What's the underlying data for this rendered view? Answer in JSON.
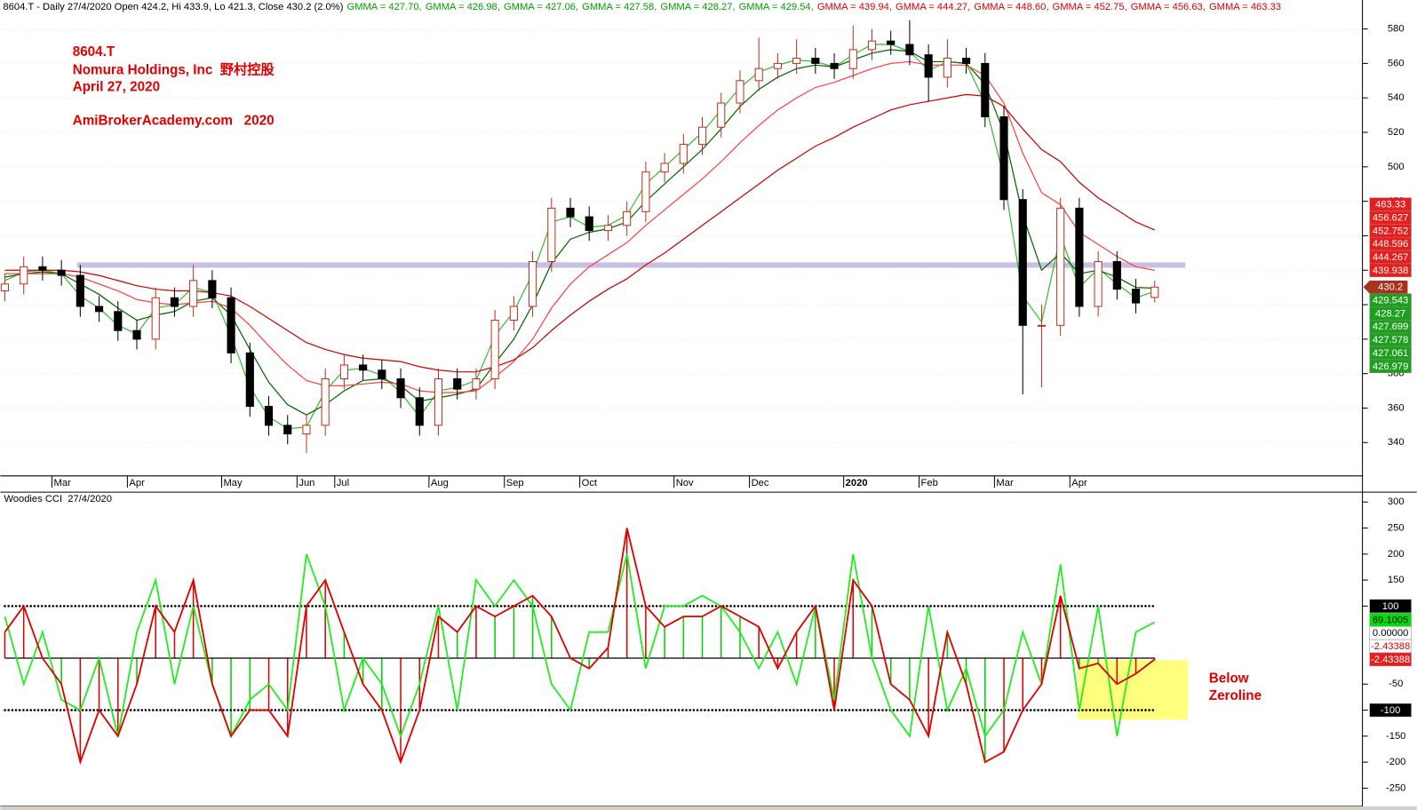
{
  "chart_data": [
    {
      "type": "candlestick",
      "title": "8604.T - Daily 27/4/2020 Open 424.2, Hi 433.9, Lo 421.3, Close 430.2 (2.0%)",
      "indicator_labels": [
        {
          "text": "GMMA = 427.70,",
          "color": "#00a000"
        },
        {
          "text": "GMMA = 426.98,",
          "color": "#00a000"
        },
        {
          "text": "GMMA = 427.06,",
          "color": "#00a000"
        },
        {
          "text": "GMMA = 427.58,",
          "color": "#00a000"
        },
        {
          "text": "GMMA = 428.27,",
          "color": "#00a000"
        },
        {
          "text": "GMMA = 429.54,",
          "color": "#00a000"
        },
        {
          "text": "GMMA = 439.94,",
          "color": "#e00000"
        },
        {
          "text": "GMMA = 444.27,",
          "color": "#e00000"
        },
        {
          "text": "GMMA = 448.60,",
          "color": "#e00000"
        },
        {
          "text": "GMMA = 452.75,",
          "color": "#e00000"
        },
        {
          "text": "GMMA = 456.63,",
          "color": "#e00000"
        },
        {
          "text": "GMMA = 463.33",
          "color": "#e00000"
        }
      ],
      "annotations": [
        "8604.T",
        "Nomura Holdings, Inc  野村控股",
        "April 27, 2020",
        "AmiBrokerAcademy.com   2020"
      ],
      "annotation_color": "#e00000",
      "categories": [
        null,
        null,
        null,
        "Mar",
        null,
        null,
        null,
        "Apr",
        null,
        null,
        null,
        null,
        "May",
        null,
        null,
        null,
        "Jun",
        null,
        "Jul",
        null,
        null,
        null,
        null,
        "Aug",
        null,
        null,
        null,
        "Sep",
        null,
        null,
        null,
        "Oct",
        null,
        null,
        null,
        null,
        "Nov",
        null,
        null,
        null,
        "Dec",
        null,
        null,
        null,
        null,
        "2020",
        null,
        null,
        null,
        "Feb",
        null,
        null,
        null,
        "Mar",
        null,
        null,
        null,
        "Apr",
        null,
        null,
        null,
        null
      ],
      "open": [
        428,
        432,
        442,
        440,
        437,
        419,
        416,
        405,
        400,
        424,
        419,
        434,
        424,
        392,
        361,
        350,
        345,
        350,
        377,
        385,
        382,
        377,
        366,
        350,
        377,
        371,
        377,
        411,
        419,
        445,
        476,
        471,
        463,
        466,
        474,
        497,
        502,
        513,
        523,
        537,
        550,
        557,
        560,
        563,
        560,
        557,
        568,
        573,
        571,
        565,
        552,
        563,
        560,
        529,
        481,
        408,
        408,
        476,
        419,
        445,
        429,
        424.2
      ],
      "high": [
        438,
        448,
        448,
        446,
        443,
        425,
        422,
        411,
        430,
        430,
        443,
        440,
        430,
        398,
        367,
        356,
        356,
        383,
        391,
        391,
        388,
        383,
        372,
        383,
        383,
        383,
        417,
        425,
        451,
        482,
        482,
        477,
        472,
        480,
        503,
        508,
        519,
        529,
        543,
        556,
        575,
        566,
        574,
        569,
        566,
        582,
        580,
        579,
        585,
        571,
        574,
        569,
        566,
        535,
        487,
        420,
        482,
        482,
        451,
        451,
        435,
        433.9
      ],
      "low": [
        422,
        426,
        434,
        431,
        413,
        410,
        399,
        394,
        394,
        413,
        413,
        418,
        386,
        355,
        344,
        339,
        334,
        344,
        371,
        376,
        371,
        360,
        344,
        344,
        365,
        365,
        371,
        405,
        413,
        439,
        465,
        457,
        457,
        460,
        468,
        491,
        496,
        507,
        517,
        531,
        544,
        551,
        554,
        554,
        551,
        551,
        562,
        565,
        559,
        538,
        546,
        554,
        523,
        475,
        368,
        372,
        402,
        413,
        413,
        423,
        415,
        421.3
      ],
      "close": [
        432,
        442,
        440,
        437,
        419,
        416,
        405,
        400,
        424,
        419,
        434,
        424,
        392,
        361,
        350,
        345,
        350,
        377,
        385,
        382,
        377,
        366,
        350,
        377,
        371,
        377,
        411,
        419,
        445,
        476,
        471,
        463,
        466,
        474,
        497,
        502,
        513,
        523,
        537,
        550,
        557,
        560,
        563,
        560,
        557,
        568,
        573,
        571,
        565,
        552,
        563,
        560,
        529,
        481,
        408,
        408,
        476,
        419,
        445,
        429,
        421,
        430.2
      ],
      "up_color": "#ffffff",
      "up_edge": "#c03020",
      "down_color": "#000000",
      "series": [
        {
          "color": "#33bb33",
          "values": [
            434,
            439,
            440,
            438,
            425,
            418,
            408,
            403,
            418,
            420,
            430,
            427,
            402,
            372,
            355,
            348,
            349,
            370,
            382,
            383,
            379,
            369,
            355,
            370,
            372,
            376,
            402,
            416,
            438,
            468,
            471,
            465,
            466,
            472,
            490,
            500,
            510,
            520,
            533,
            546,
            555,
            559,
            562,
            561,
            558,
            565,
            571,
            571,
            567,
            556,
            561,
            560,
            537,
            494,
            425,
            410,
            460,
            430,
            441,
            432,
            424,
            427.7
          ]
        },
        {
          "color": "#006600",
          "values": [
            436,
            438,
            439,
            438,
            432,
            426,
            418,
            411,
            414,
            416,
            422,
            424,
            414,
            394,
            375,
            362,
            356,
            362,
            370,
            376,
            377,
            373,
            364,
            366,
            368,
            371,
            386,
            400,
            420,
            444,
            458,
            462,
            464,
            468,
            480,
            490,
            500,
            510,
            522,
            535,
            545,
            552,
            557,
            559,
            558,
            562,
            566,
            568,
            567,
            561,
            561,
            560,
            548,
            520,
            472,
            440,
            450,
            438,
            440,
            436,
            430,
            429.54
          ]
        },
        {
          "color": "#ff4040",
          "values": [
            438,
            438,
            438,
            438,
            436,
            432,
            428,
            423,
            421,
            420,
            421,
            422,
            418,
            408,
            396,
            385,
            376,
            373,
            373,
            374,
            375,
            374,
            370,
            369,
            369,
            370,
            378,
            387,
            400,
            418,
            432,
            442,
            449,
            456,
            466,
            475,
            484,
            493,
            503,
            514,
            524,
            533,
            540,
            546,
            549,
            553,
            557,
            560,
            561,
            559,
            559,
            559,
            553,
            537,
            508,
            485,
            478,
            462,
            455,
            448,
            442,
            439.94
          ]
        },
        {
          "color": "#cc0000",
          "values": [
            440,
            440,
            440,
            440,
            439,
            437,
            434,
            431,
            429,
            428,
            428,
            427,
            425,
            419,
            412,
            405,
            398,
            394,
            391,
            389,
            388,
            387,
            384,
            382,
            381,
            381,
            384,
            388,
            395,
            405,
            414,
            422,
            429,
            435,
            443,
            450,
            458,
            466,
            474,
            482,
            490,
            498,
            505,
            512,
            517,
            523,
            528,
            533,
            536,
            538,
            540,
            542,
            541,
            535,
            522,
            510,
            503,
            491,
            482,
            475,
            468,
            463.33
          ]
        }
      ],
      "reference_lines": [
        {
          "value": 443,
          "color": "#c8c0e4"
        }
      ],
      "ylim": [
        321.7,
        596.8
      ],
      "yticks": [
        340,
        360,
        380,
        400,
        420,
        440,
        460,
        480,
        500,
        520,
        540,
        560,
        580
      ],
      "grid": true,
      "value_tags": [
        {
          "value": 463.33,
          "label": "463.33",
          "bg": "#e81e1e",
          "fg": "#ffffff"
        },
        {
          "value": 456.627,
          "label": "456.627",
          "bg": "#e81e1e",
          "fg": "#ffffff"
        },
        {
          "value": 452.752,
          "label": "452.752",
          "bg": "#e81e1e",
          "fg": "#ffffff"
        },
        {
          "value": 448.596,
          "label": "448.596",
          "bg": "#e81e1e",
          "fg": "#ffffff"
        },
        {
          "value": 444.267,
          "label": "444.267",
          "bg": "#e81e1e",
          "fg": "#ffffff"
        },
        {
          "value": 439.938,
          "label": "439.938",
          "bg": "#e81e1e",
          "fg": "#ffffff"
        },
        {
          "value": 430.2,
          "label": "430.2",
          "bg": "#a8321e",
          "fg": "#ffffff"
        },
        {
          "value": 429.543,
          "label": "429.543",
          "bg": "#1ea01e",
          "fg": "#ffffff"
        },
        {
          "value": 428.27,
          "label": "428.27",
          "bg": "#1ea01e",
          "fg": "#ffffff"
        },
        {
          "value": 427.699,
          "label": "427.699",
          "bg": "#1ea01e",
          "fg": "#ffffff"
        },
        {
          "value": 427.578,
          "label": "427.578",
          "bg": "#1ea01e",
          "fg": "#ffffff"
        },
        {
          "value": 427.061,
          "label": "427.061",
          "bg": "#1ea01e",
          "fg": "#ffffff"
        },
        {
          "value": 426.979,
          "label": "426.979",
          "bg": "#1ea01e",
          "fg": "#ffffff"
        }
      ]
    },
    {
      "type": "cci",
      "title": "Woodies CCI  27/4/2020",
      "annotations": [
        "Below",
        "Zeroline"
      ],
      "annotation_color": "#e00000",
      "series": [
        {
          "color": "#e00000",
          "values": [
            50,
            100,
            0,
            -50,
            -200,
            -100,
            -150,
            -50,
            100,
            50,
            150,
            -50,
            -150,
            -100,
            -100,
            -150,
            100,
            150,
            50,
            -50,
            -100,
            -200,
            -100,
            80,
            50,
            100,
            80,
            100,
            120,
            80,
            0,
            -20,
            20,
            250,
            100,
            60,
            80,
            80,
            100,
            80,
            60,
            -20,
            50,
            100,
            -100,
            150,
            100,
            -50,
            -80,
            -150,
            50,
            -50,
            -200,
            -180,
            -100,
            -50,
            120,
            -20,
            -10,
            -50,
            -30,
            -2.43388
          ]
        },
        {
          "color": "#22ee22",
          "values": [
            80,
            -50,
            50,
            -80,
            -100,
            0,
            -150,
            50,
            150,
            -50,
            100,
            -50,
            -150,
            -80,
            -50,
            -100,
            200,
            100,
            -100,
            0,
            -50,
            -150,
            -50,
            100,
            -100,
            150,
            100,
            150,
            100,
            -50,
            -100,
            50,
            50,
            200,
            -20,
            100,
            100,
            120,
            100,
            50,
            -20,
            50,
            -50,
            100,
            -80,
            200,
            0,
            -100,
            -150,
            100,
            -100,
            -20,
            -150,
            -100,
            50,
            -50,
            180,
            -100,
            100,
            -150,
            50,
            69.1005
          ]
        }
      ],
      "histogram_colors": [
        "#e00000",
        "#e00000",
        "#e00000",
        "#00d000",
        "#e00000",
        "#e00000",
        "#e00000",
        "#00d000",
        "#e00000",
        "#e00000",
        "#e00000",
        "#00d000",
        "#00d000",
        "#00d000",
        "#e00000",
        "#e00000",
        "#e00000",
        "#e00000",
        "#00d000",
        "#00d000",
        "#00d000",
        "#e00000",
        "#e00000",
        "#e00000",
        "#00d000",
        "#e00000",
        "#00d000",
        "#00d000",
        "#00d000",
        "#00d000",
        "#e00000",
        "#00d000",
        "#e00000",
        "#e00000",
        "#e00000",
        "#00d000",
        "#00d000",
        "#00d000",
        "#00d000",
        "#00d000",
        "#e00000",
        "#e00000",
        "#e00000",
        "#00d000",
        "#e00000",
        "#e00000",
        "#00d000",
        "#00d000",
        "#00d000",
        "#e00000",
        "#00d000",
        "#00d000",
        "#00d000",
        "#e00000",
        "#e00000",
        "#e00000",
        "#e00000",
        "#00d000",
        "#00d000",
        "#e00000",
        "#e00000",
        "#e00000"
      ],
      "reference_lines": [
        {
          "value": 100,
          "style": "dotted",
          "color": "#000000"
        },
        {
          "value": 0,
          "style": "solid",
          "color": "#000000"
        },
        {
          "value": -100,
          "style": "dotted",
          "color": "#000000"
        }
      ],
      "ylim": [
        -285,
        319
      ],
      "yticks": [
        300,
        250,
        200,
        150,
        100,
        -50,
        -100,
        -150,
        -200,
        -250
      ],
      "value_tags": [
        {
          "value": 100,
          "label": "100",
          "bg": "#000000",
          "fg": "#ffffff"
        },
        {
          "value": 69.1005,
          "label": "69.1005",
          "bg": "#00e000",
          "fg": "#000000"
        },
        {
          "value": 0,
          "label": "0.00000",
          "bg": "#ffffff",
          "fg": "#000000"
        },
        {
          "value": -2.43388,
          "label": "-2.43388",
          "bg": "#ffffff",
          "fg": "#e00000"
        },
        {
          "value": -2.43388,
          "label": "-2.43388",
          "bg": "#e81e1e",
          "fg": "#ffffff"
        },
        {
          "value": -100,
          "label": "-100",
          "bg": "#000000",
          "fg": "#ffffff"
        }
      ]
    }
  ]
}
